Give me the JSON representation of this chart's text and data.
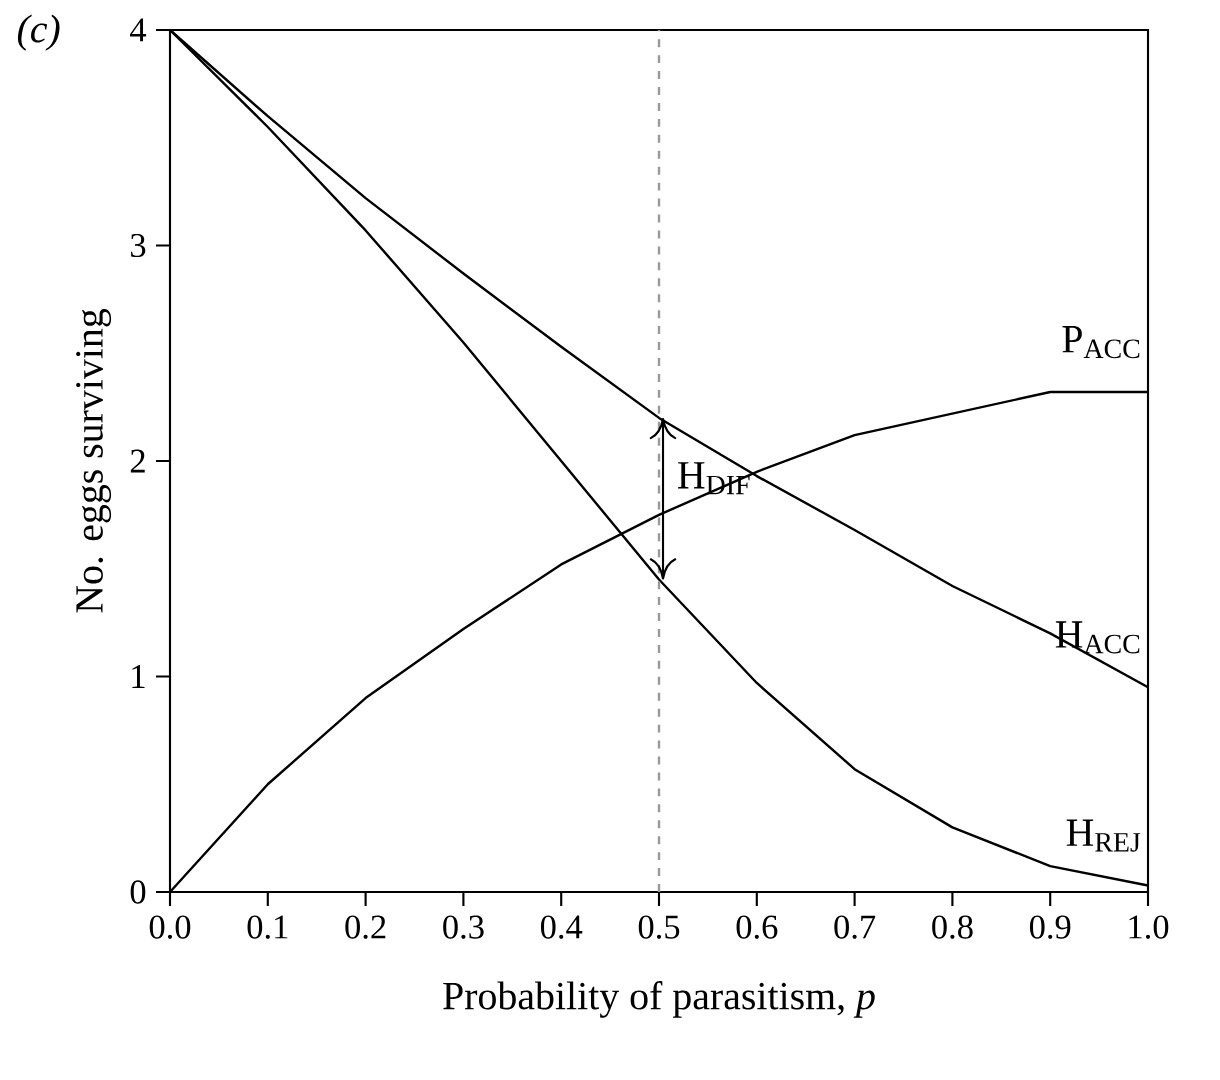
{
  "chart_data": {
    "type": "line",
    "title": "(c)",
    "xlabel": "Probability of parasitism, *p*",
    "ylabel": "No. eggs surviving",
    "x": [
      0,
      0.1,
      0.2,
      0.3,
      0.4,
      0.5,
      0.6,
      0.7,
      0.8,
      0.9,
      1.0
    ],
    "series": [
      {
        "name": "P$_{ACC}$",
        "color": "#000000",
        "values": [
          0,
          0.5,
          0.9,
          1.22,
          1.52,
          1.75,
          1.95,
          2.12,
          2.22,
          2.32,
          2.32
        ]
      },
      {
        "name": "H$_{ACC}$",
        "color": "#000000",
        "values": [
          4,
          3.6,
          3.22,
          2.87,
          2.53,
          2.2,
          1.93,
          1.68,
          1.42,
          1.2,
          0.95
        ]
      },
      {
        "name": "H$_{REJ}$",
        "color": "#000000",
        "values": [
          4,
          3.55,
          3.07,
          2.55,
          2.0,
          1.45,
          0.97,
          0.57,
          0.3,
          0.12,
          0.03
        ]
      }
    ],
    "xlim": [
      0,
      1
    ],
    "ylim": [
      0,
      4
    ],
    "xticks": [
      {
        "value": 0,
        "label": "0.0"
      },
      0.1,
      0.2,
      0.3,
      0.4,
      0.5,
      0.6,
      0.7,
      0.8,
      0.9,
      {
        "value": 1,
        "label": "1.0"
      }
    ],
    "yticks": [
      0,
      1,
      2,
      3,
      4
    ],
    "ref_lines": [
      {
        "axis": "x",
        "value": 0.5,
        "color": "#999999",
        "line_style": "dashed"
      }
    ],
    "annotations": [
      {
        "text": "H$_{DIF}$",
        "x": 0.5,
        "y": 1.92
      }
    ],
    "legend": false,
    "grid": false,
    "marker": "none",
    "line_style": "solid"
  }
}
